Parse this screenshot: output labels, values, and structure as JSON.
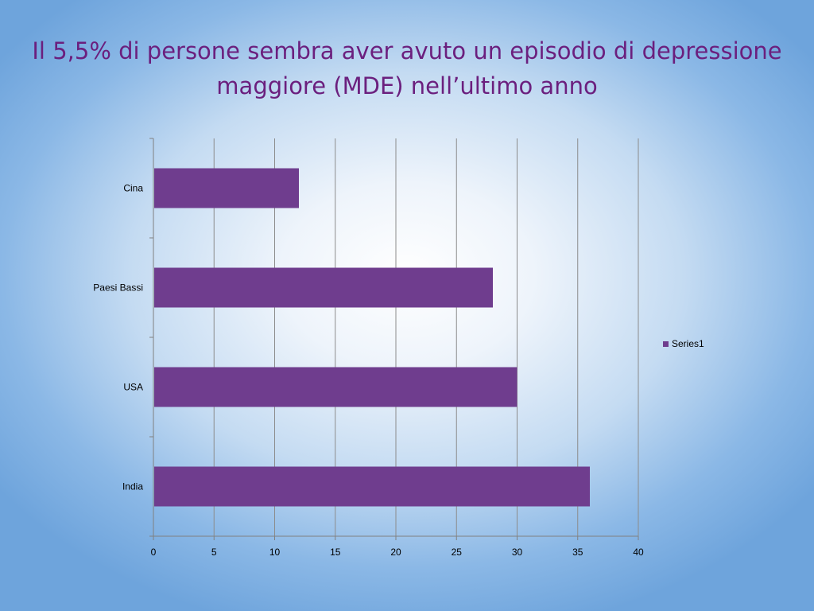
{
  "slide": {
    "title_line1": "Il 5,5% di persone sembra aver avuto un episodio di depressione",
    "title_line2": "maggiore (MDE) nell’ultimo anno"
  },
  "colors": {
    "title": "#6b1f7e",
    "bar": "#6f3d8e",
    "grid": "#8c8c8c",
    "axis": "#808080"
  },
  "chart_data": {
    "type": "bar",
    "orientation": "horizontal",
    "categories": [
      "Cina",
      "Paesi Bassi",
      "USA",
      "India"
    ],
    "series": [
      {
        "name": "Series1",
        "values": [
          12,
          28,
          30,
          36
        ]
      }
    ],
    "xlim": [
      0,
      40
    ],
    "xticks": [
      0,
      5,
      10,
      15,
      20,
      25,
      30,
      35,
      40
    ],
    "xlabel": "",
    "ylabel": "",
    "grid": "vertical major gridlines",
    "legend": "right"
  }
}
